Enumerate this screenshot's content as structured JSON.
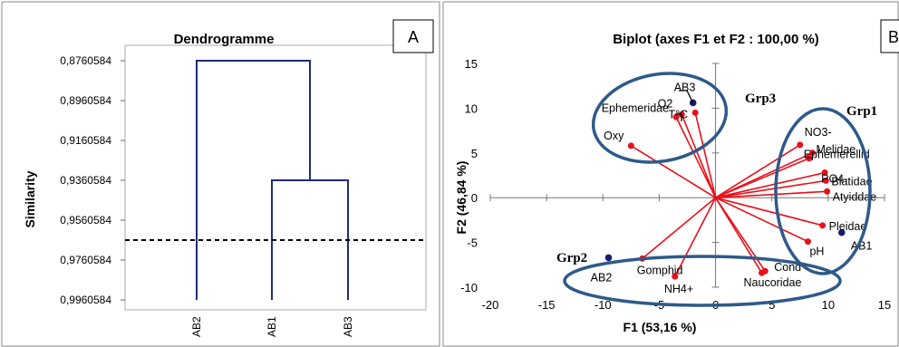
{
  "chart_data": [
    {
      "type": "dendrogram",
      "title": "Dendrogramme",
      "panel_label": "A",
      "ylabel": "Similarity",
      "y_ticks": [
        "0,8760584",
        "0,8960584",
        "0,9160584",
        "0,9360584",
        "0,9560584",
        "0,9760584",
        "0,9960584"
      ],
      "ylim": [
        0.8760584,
        0.9960584
      ],
      "y_inverted": true,
      "leaves": [
        "AB2",
        "AB1",
        "AB3"
      ],
      "merges": [
        {
          "left": "AB1",
          "right": "AB3",
          "similarity": 0.9360584
        },
        {
          "left": "AB2",
          "right": "AB1+AB3",
          "similarity": 0.8760584
        }
      ],
      "truncation_similarity": 0.9660584,
      "truncation_line": "dashed"
    },
    {
      "type": "scatter",
      "title": "Biplot (axes F1 et F2 : 100,00 %)",
      "panel_label": "B",
      "xlabel": "F1 (53,16 %)",
      "ylabel": "F2 (46,84 %)",
      "xlim": [
        -20,
        15
      ],
      "ylim": [
        -10,
        15
      ],
      "x_ticks": [
        -20,
        -15,
        -10,
        -5,
        0,
        5,
        10,
        15
      ],
      "y_ticks": [
        15,
        10,
        5,
        0,
        -5,
        -10
      ],
      "observations": [
        {
          "label": "AB3",
          "x": -2,
          "y": 10.6
        },
        {
          "label": "AB1",
          "x": 11.2,
          "y": -3.9
        },
        {
          "label": "AB2",
          "x": -9.5,
          "y": -6.7
        }
      ],
      "variables": [
        {
          "label": "O2",
          "x": -3,
          "y": 9.3
        },
        {
          "label": "Ephemeridae",
          "x": -3.5,
          "y": 9.0
        },
        {
          "label": "T°C",
          "x": -1.8,
          "y": 9.5
        },
        {
          "label": "Oxy",
          "x": -7.5,
          "y": 5.8
        },
        {
          "label": "NO3-",
          "x": 7.5,
          "y": 5.9
        },
        {
          "label": "Melidae",
          "x": 8.6,
          "y": 5.0
        },
        {
          "label": "Ephemerellid",
          "x": 8.3,
          "y": 4.4
        },
        {
          "label": "PO4-",
          "x": 9.7,
          "y": 2.8
        },
        {
          "label": "Blatidae",
          "x": 9.8,
          "y": 1.9
        },
        {
          "label": "Atyiddae",
          "x": 9.9,
          "y": 0.7
        },
        {
          "label": "Pleidae",
          "x": 9.5,
          "y": -3.1
        },
        {
          "label": "pH",
          "x": 8.2,
          "y": -4.9
        },
        {
          "label": "Cond",
          "x": 4.4,
          "y": -8.2
        },
        {
          "label": "Naucoridae",
          "x": 4.1,
          "y": -8.4
        },
        {
          "label": "Gomphid",
          "x": -6.5,
          "y": -6.8
        },
        {
          "label": "NH4+",
          "x": -3.6,
          "y": -8.8
        }
      ],
      "groups": [
        "Grp1",
        "Grp2",
        "Grp3"
      ]
    }
  ]
}
